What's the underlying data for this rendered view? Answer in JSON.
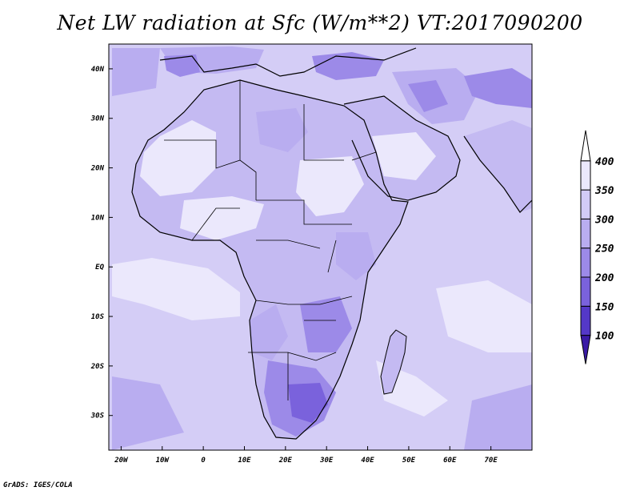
{
  "title": "Net LW radiation at Sfc (W/m**2) VT:2017090200",
  "footer": "GrADS: IGES/COLA",
  "map": {
    "lon_range": [
      -23,
      80
    ],
    "lat_range": [
      -37,
      45
    ],
    "x_ticks": [
      {
        "value": -20,
        "label": "20W"
      },
      {
        "value": -10,
        "label": "10W"
      },
      {
        "value": 0,
        "label": "0"
      },
      {
        "value": 10,
        "label": "10E"
      },
      {
        "value": 20,
        "label": "20E"
      },
      {
        "value": 30,
        "label": "30E"
      },
      {
        "value": 40,
        "label": "40E"
      },
      {
        "value": 50,
        "label": "50E"
      },
      {
        "value": 60,
        "label": "60E"
      },
      {
        "value": 70,
        "label": "70E"
      }
    ],
    "y_ticks": [
      {
        "value": 40,
        "label": "40N"
      },
      {
        "value": 30,
        "label": "30N"
      },
      {
        "value": 20,
        "label": "20N"
      },
      {
        "value": 10,
        "label": "10N"
      },
      {
        "value": 0,
        "label": "EQ"
      },
      {
        "value": -10,
        "label": "10S"
      },
      {
        "value": -20,
        "label": "20S"
      },
      {
        "value": -30,
        "label": "30S"
      }
    ]
  },
  "colorbar": {
    "levels": [
      "100",
      "150",
      "200",
      "250",
      "300",
      "350",
      "400"
    ],
    "colors": [
      "#3a1aa6",
      "#5438c8",
      "#7a62dc",
      "#9c8ae8",
      "#b9adf0",
      "#d2cbf7",
      "#ebe8fc",
      "#ffffff"
    ]
  },
  "colors": {
    "ocean": "#d4cdf6",
    "land_default": "#c4baf2",
    "coast_line": "#000000"
  }
}
